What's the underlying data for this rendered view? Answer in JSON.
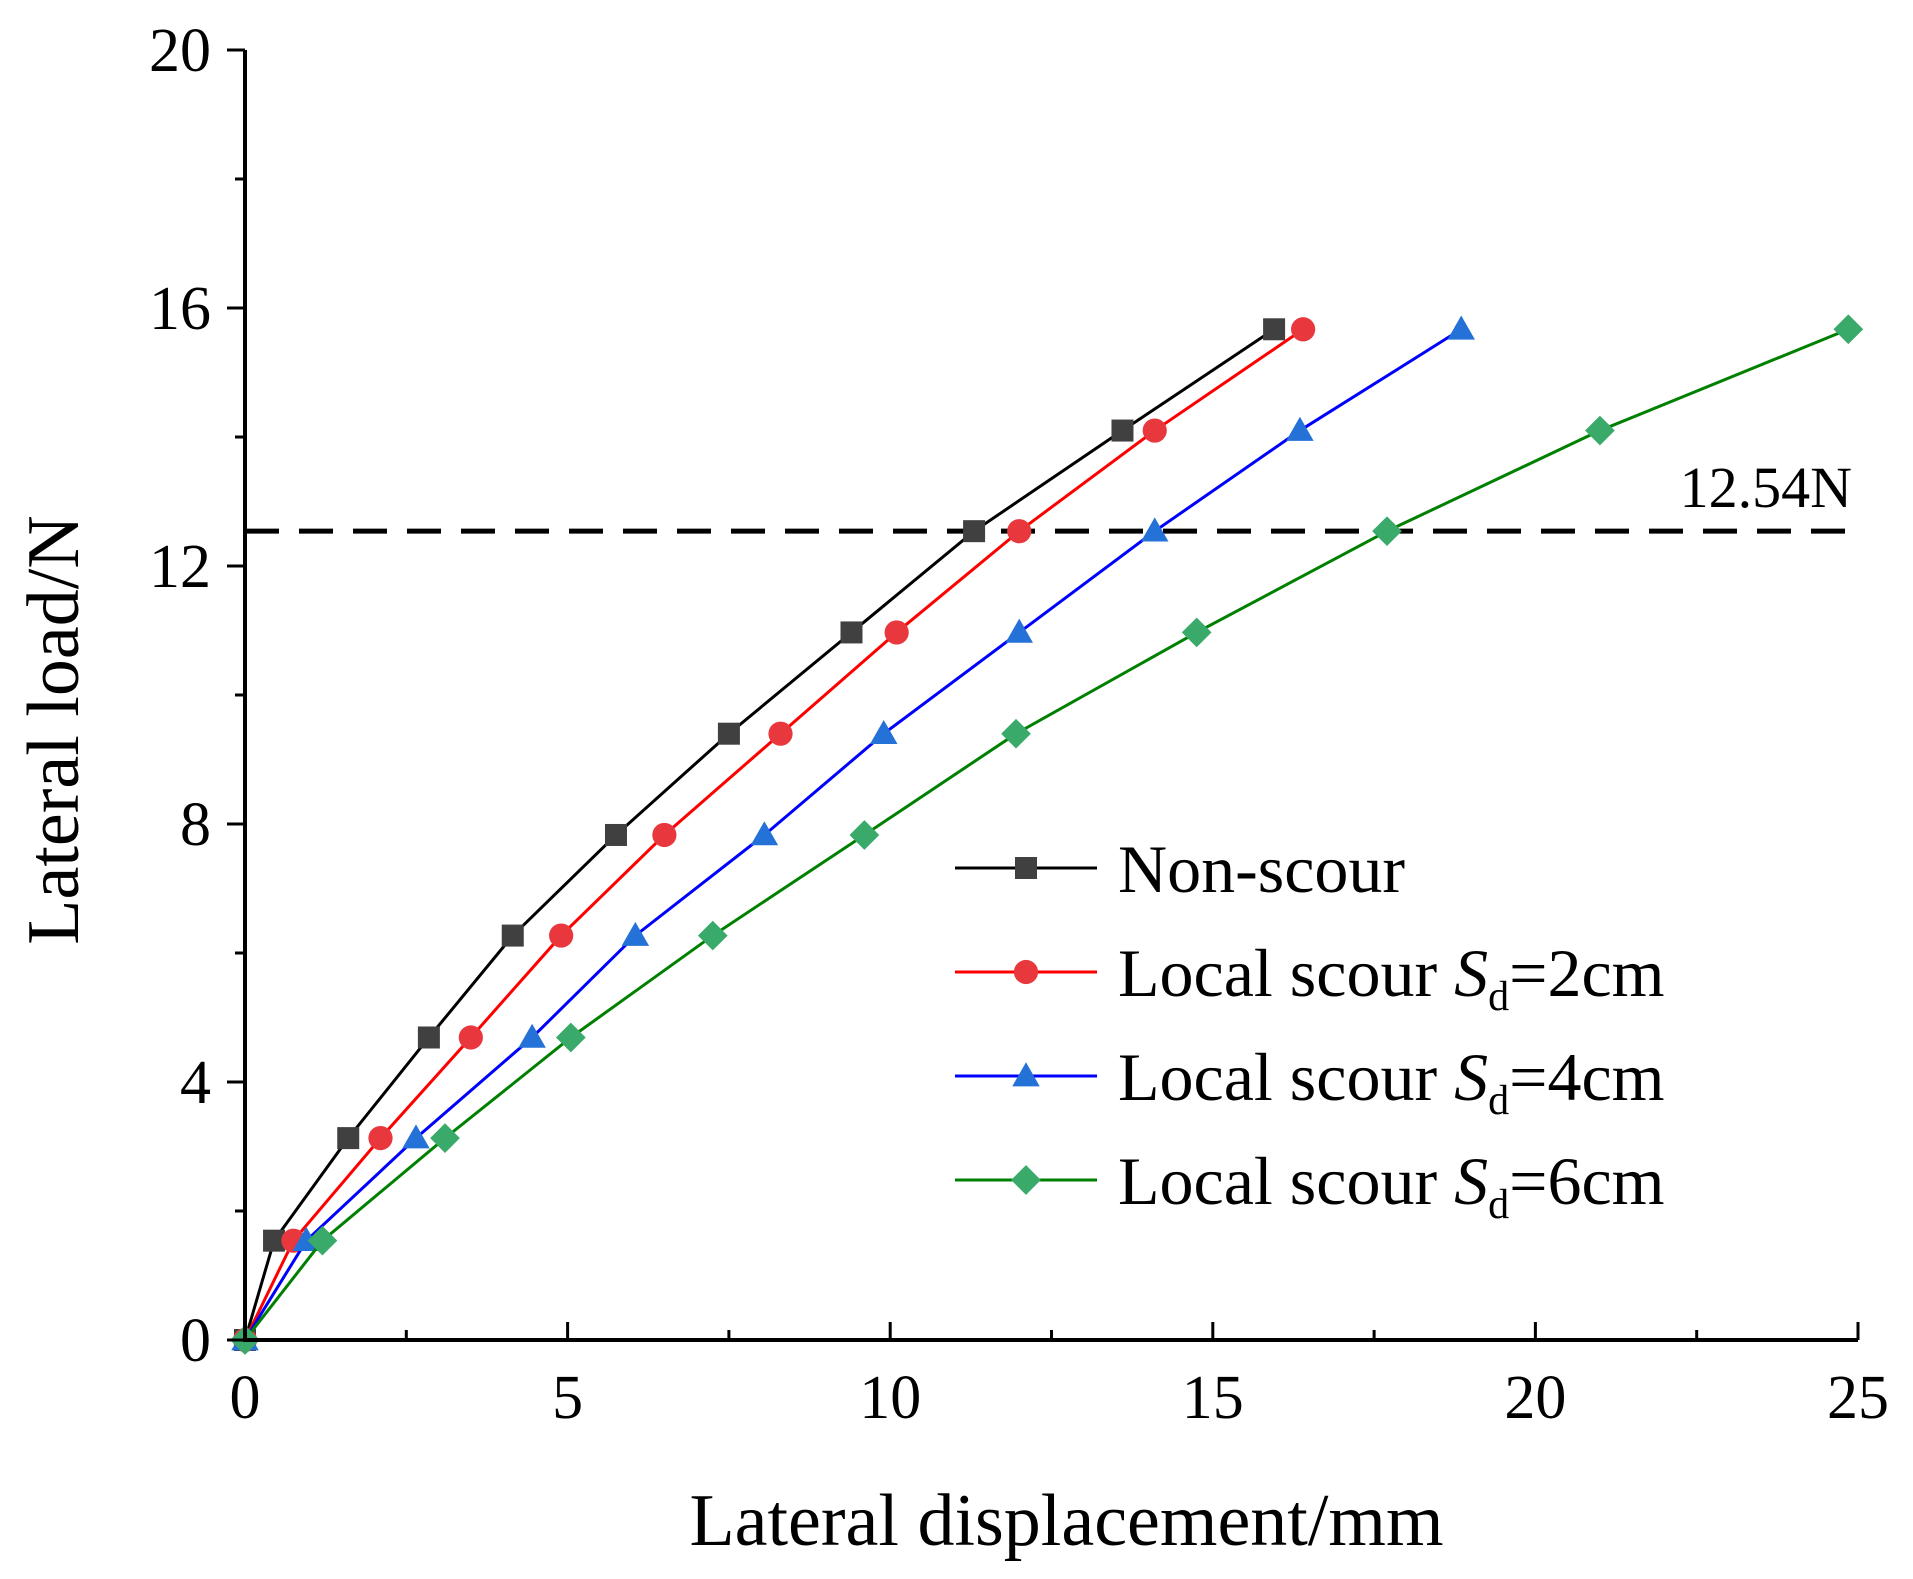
{
  "chart_data": {
    "type": "line",
    "xlabel": "Lateral displacement/mm",
    "ylabel": "Lateral load/N",
    "xlim": [
      0,
      25
    ],
    "ylim": [
      0,
      20
    ],
    "xticks": [
      0,
      5,
      10,
      15,
      20,
      25
    ],
    "yticks": [
      0,
      4,
      8,
      12,
      16,
      20
    ],
    "xtick_labels": [
      "0",
      "5",
      "10",
      "15",
      "20",
      "25"
    ],
    "ytick_labels": [
      "0",
      "4",
      "8",
      "12",
      "16",
      "20"
    ],
    "grid": false,
    "legend_position": "lower-right",
    "reference_line": {
      "y": 12.54,
      "label": "12.54N",
      "style": "dashed",
      "color": "#000000"
    },
    "series": [
      {
        "name": "Non-scour",
        "legend_parts": [
          "Non-scour"
        ],
        "marker": "square",
        "color": "#000000",
        "marker_color": "#404040",
        "x": [
          0,
          0.45,
          1.6,
          2.85,
          4.15,
          5.75,
          7.5,
          9.4,
          11.3,
          13.6,
          15.95
        ],
        "y": [
          0,
          1.54,
          3.13,
          4.69,
          6.27,
          7.83,
          9.4,
          10.97,
          12.54,
          14.1,
          15.67
        ]
      },
      {
        "name": "Local scour Sd=2cm",
        "legend_parts": [
          "Local scour ",
          "S",
          "d",
          "=2cm"
        ],
        "marker": "circle",
        "color": "#ff0000",
        "marker_color": "#e8383d",
        "x": [
          0,
          0.75,
          2.1,
          3.5,
          4.9,
          6.5,
          8.3,
          10.1,
          12.0,
          14.1,
          16.4
        ],
        "y": [
          0,
          1.54,
          3.13,
          4.69,
          6.27,
          7.83,
          9.4,
          10.97,
          12.54,
          14.1,
          15.67
        ]
      },
      {
        "name": "Local scour Sd=4cm",
        "legend_parts": [
          "Local scour ",
          "S",
          "d",
          "=4cm"
        ],
        "marker": "triangle",
        "color": "#0000ff",
        "marker_color": "#2472d8",
        "x": [
          0,
          0.95,
          2.65,
          4.45,
          6.05,
          8.05,
          9.9,
          12.0,
          14.1,
          16.35,
          18.85
        ],
        "y": [
          0,
          1.54,
          3.13,
          4.69,
          6.27,
          7.83,
          9.4,
          10.97,
          12.54,
          14.1,
          15.67
        ]
      },
      {
        "name": "Local scour Sd=6cm",
        "legend_parts": [
          "Local scour ",
          "S",
          "d",
          "=6cm"
        ],
        "marker": "diamond",
        "color": "#008000",
        "marker_color": "#3aaa6a",
        "x": [
          0,
          1.2,
          3.1,
          5.05,
          7.25,
          9.6,
          11.95,
          14.75,
          17.7,
          21.0,
          24.85
        ],
        "y": [
          0,
          1.54,
          3.13,
          4.69,
          6.27,
          7.83,
          9.4,
          10.97,
          12.54,
          14.1,
          15.67
        ]
      }
    ]
  }
}
